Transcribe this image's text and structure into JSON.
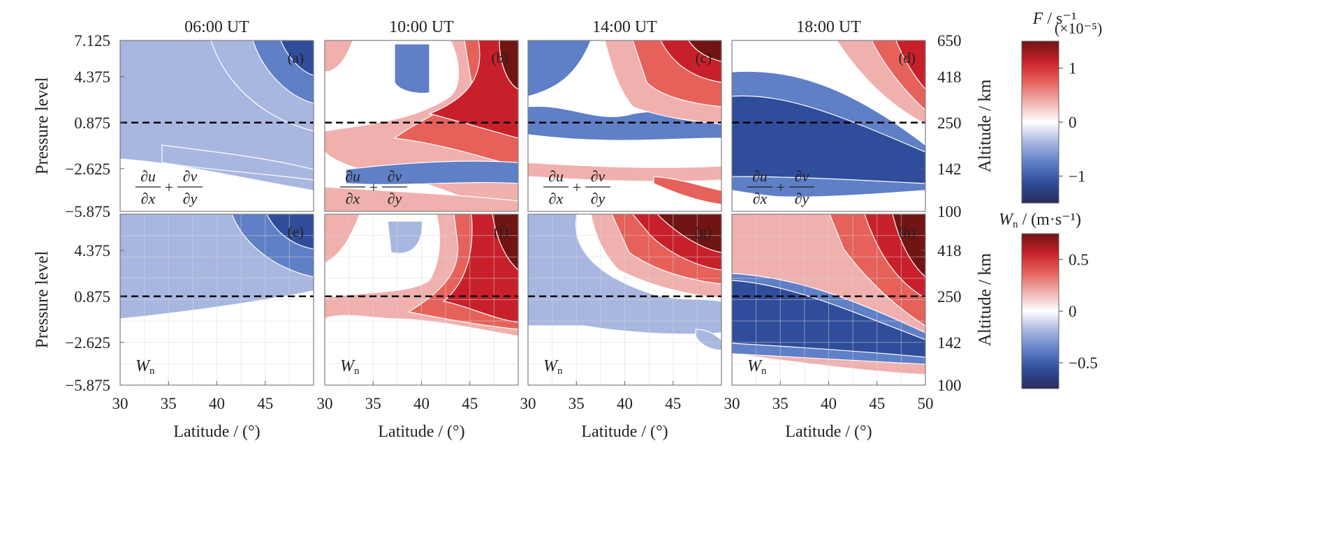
{
  "chart_data": {
    "type": "heatmap",
    "columns": [
      "06:00 UT",
      "10:00 UT",
      "14:00 UT",
      "18:00 UT"
    ],
    "xlabel": "Latitude / (°)",
    "xticks": [
      30,
      35,
      40,
      45,
      50
    ],
    "xlim": [
      30,
      50
    ],
    "ylabel_left": "Pressure level",
    "yticks_left": [
      "7.125",
      "4.375",
      "0.875",
      "−2.625",
      "−5.875"
    ],
    "ylim_left": [
      -5.875,
      7.125
    ],
    "ylabel_right": "Altitude / km",
    "yticks_right_top": [
      "650",
      "418",
      "250",
      "142",
      "100"
    ],
    "yticks_right_bottom": [
      "418",
      "250",
      "142",
      "100"
    ],
    "dashed_line_pressure_level": 0.875,
    "rows": [
      {
        "variable": "∂u/∂x + ∂v/∂y",
        "colorbar": {
          "label": "F / s⁻¹",
          "multiplier": "(×10⁻⁵)",
          "ticks": [
            "1",
            "0",
            "−1"
          ],
          "tick_values": [
            1,
            0,
            -1
          ],
          "range": [
            -1.5,
            1.5
          ],
          "colors": [
            "#2a2b5f",
            "#2f4d9a",
            "#5f7fc6",
            "#a8b7e0",
            "#ffffff",
            "#f0b0ae",
            "#e5615a",
            "#c8202a",
            "#701414"
          ]
        },
        "panels": [
          {
            "tag": "(a)",
            "inset_numerator_1": "∂u",
            "inset_denominator_1": "∂x",
            "inset_plus": "+",
            "inset_numerator_2": "∂v",
            "inset_denominator_2": "∂y"
          },
          {
            "tag": "(b)",
            "inset_numerator_1": "∂u",
            "inset_denominator_1": "∂x",
            "inset_plus": "+",
            "inset_numerator_2": "∂v",
            "inset_denominator_2": "∂y"
          },
          {
            "tag": "(c)",
            "inset_numerator_1": "∂u",
            "inset_denominator_1": "∂x",
            "inset_plus": "+",
            "inset_numerator_2": "∂v",
            "inset_denominator_2": "∂y"
          },
          {
            "tag": "(d)",
            "inset_numerator_1": "∂u",
            "inset_denominator_1": "∂x",
            "inset_plus": "+",
            "inset_numerator_2": "∂v",
            "inset_denominator_2": "∂y"
          }
        ]
      },
      {
        "variable": "Wn",
        "colorbar": {
          "label_main": "W",
          "label_sub": "n",
          "label_unit": " / (m·s⁻¹)",
          "ticks": [
            "0.5",
            "0",
            "−0.5"
          ],
          "tick_values": [
            0.5,
            0,
            -0.5
          ],
          "range": [
            -0.75,
            0.75
          ],
          "colors": [
            "#2a2b5f",
            "#2f4d9a",
            "#5f7fc6",
            "#a8b7e0",
            "#ffffff",
            "#f0b0ae",
            "#e5615a",
            "#c8202a",
            "#701414"
          ]
        },
        "panels": [
          {
            "tag": "(e)",
            "inset_main": "W",
            "inset_sub": "n"
          },
          {
            "tag": "(f)",
            "inset_main": "W",
            "inset_sub": "n"
          },
          {
            "tag": "(g)",
            "inset_main": "W",
            "inset_sub": "n"
          },
          {
            "tag": "(h)",
            "inset_main": "W",
            "inset_sub": "n"
          }
        ]
      }
    ]
  }
}
